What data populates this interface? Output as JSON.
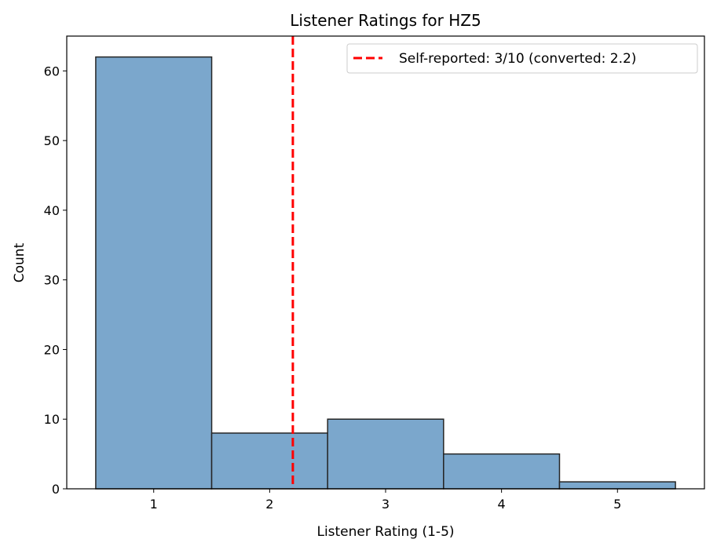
{
  "chart_data": {
    "type": "bar",
    "title": "Listener Ratings for HZ5",
    "xlabel": "Listener Rating (1-5)",
    "ylabel": "Count",
    "categories": [
      "1",
      "2",
      "3",
      "4",
      "5"
    ],
    "x": [
      1,
      2,
      3,
      4,
      5
    ],
    "values": [
      62,
      8,
      10,
      5,
      1
    ],
    "bin_width": 1,
    "xlim": [
      0.25,
      5.75
    ],
    "ylim": [
      0,
      65
    ],
    "xticks": [
      1,
      2,
      3,
      4,
      5
    ],
    "yticks": [
      0,
      10,
      20,
      30,
      40,
      50,
      60
    ],
    "grid": false,
    "bar_color": "#7ba7cc",
    "bar_edge_color": "#262626",
    "reference_line": {
      "x": 2.2,
      "color": "#ff0000",
      "style": "dashed",
      "label": "Self-reported: 3/10 (converted: 2.2)"
    },
    "legend_placement": "top-right"
  }
}
